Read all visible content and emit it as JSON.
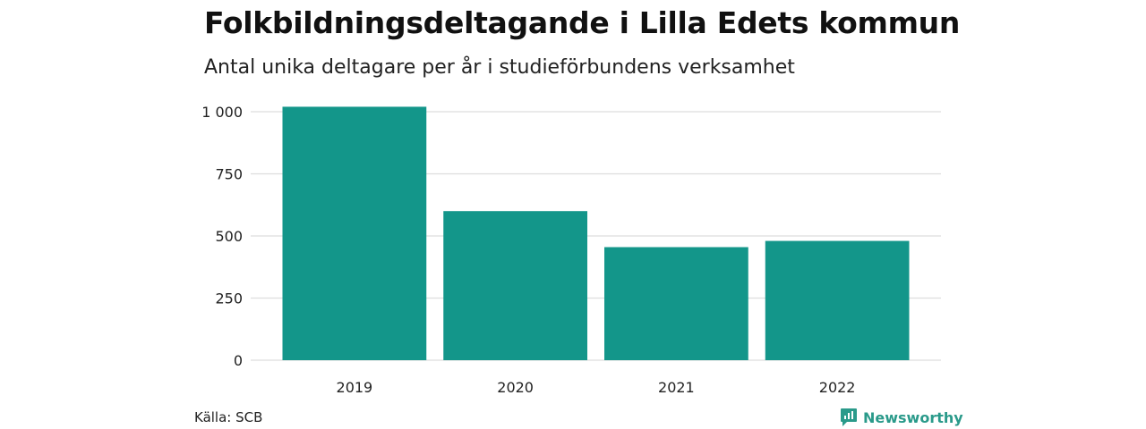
{
  "title": "Folkbildningsdeltagande i Lilla Edets kommun",
  "subtitle": "Antal unika deltagare per år i studieförbundens verksamhet",
  "source": "Källa: SCB",
  "brand": "Newsworthy",
  "colors": {
    "bar": "#13968a",
    "grid": "#dddddd",
    "brand": "#2a9a8a"
  },
  "chart_data": {
    "type": "bar",
    "categories": [
      "2019",
      "2020",
      "2021",
      "2022"
    ],
    "values": [
      1020,
      600,
      455,
      480
    ],
    "ylim": [
      0,
      1000
    ],
    "yticks": [
      0,
      250,
      500,
      750,
      1000
    ],
    "ytick_labels": [
      "0",
      "250",
      "500",
      "750",
      "1 000"
    ],
    "grid": true
  }
}
